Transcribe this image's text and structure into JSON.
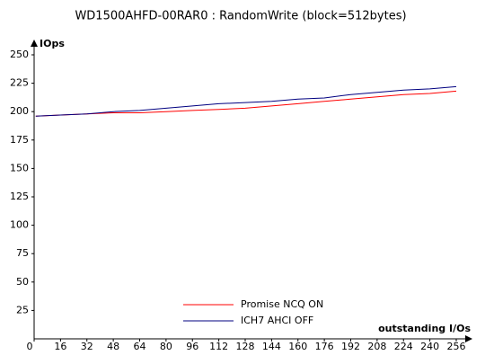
{
  "chart_data": {
    "type": "line",
    "title": "WD1500AHFD-00RAR0 : RandomWrite (block=512bytes)",
    "y_label": "IOps",
    "x_label": "outstanding I/Os",
    "x": [
      1,
      16,
      32,
      48,
      64,
      80,
      96,
      112,
      128,
      144,
      160,
      176,
      192,
      208,
      224,
      240,
      256
    ],
    "series": [
      {
        "name": "Promise NCQ ON",
        "color": "#ff0000",
        "values": [
          196,
          197,
          198,
          199,
          199,
          200,
          201,
          202,
          203,
          205,
          207,
          209,
          211,
          213,
          215,
          216,
          218
        ]
      },
      {
        "name": "ICH7 AHCI OFF",
        "color": "#000080",
        "values": [
          196,
          197,
          198,
          200,
          201,
          203,
          205,
          207,
          208,
          209,
          211,
          212,
          215,
          217,
          219,
          220,
          222
        ]
      }
    ],
    "xlim": [
      0,
      264
    ],
    "ylim": [
      0,
      260
    ],
    "xticks": [
      0,
      16,
      32,
      48,
      64,
      80,
      96,
      112,
      128,
      144,
      160,
      176,
      192,
      208,
      224,
      240,
      256
    ],
    "yticks": [
      25,
      50,
      75,
      100,
      125,
      150,
      175,
      200,
      225,
      250
    ],
    "grid": false,
    "legend": "bottom"
  }
}
